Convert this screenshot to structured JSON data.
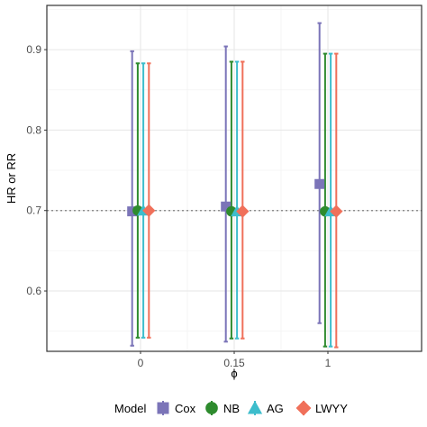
{
  "chart_data": {
    "type": "scatter",
    "title": "",
    "xlabel": "ϕ",
    "ylabel": "HR or RR",
    "categories": [
      "0",
      "0.15",
      "1"
    ],
    "ylim": [
      0.525,
      0.955
    ],
    "yticks": [
      0.6,
      0.7,
      0.8,
      0.9
    ],
    "ytick_labels": [
      "0.6",
      "0.7",
      "0.8",
      "0.9"
    ],
    "reference_line": 0.7,
    "grid": true,
    "legend_position": "bottom",
    "legend_title": "Model",
    "series": [
      {
        "name": "Cox",
        "color": "#7b74b8",
        "shape": "square",
        "values": [
          0.699,
          0.705,
          0.733
        ],
        "lower": [
          0.532,
          0.537,
          0.56
        ],
        "upper": [
          0.898,
          0.904,
          0.933
        ]
      },
      {
        "name": "NB",
        "color": "#2e8b2e",
        "shape": "circle",
        "values": [
          0.7,
          0.699,
          0.699
        ],
        "lower": [
          0.542,
          0.541,
          0.531
        ],
        "upper": [
          0.883,
          0.885,
          0.895
        ]
      },
      {
        "name": "AG",
        "color": "#3dbdcc",
        "shape": "triangle",
        "values": [
          0.7,
          0.699,
          0.699
        ],
        "lower": [
          0.542,
          0.541,
          0.531
        ],
        "upper": [
          0.883,
          0.885,
          0.895
        ]
      },
      {
        "name": "LWYY",
        "color": "#f0705a",
        "shape": "diamond",
        "values": [
          0.7,
          0.699,
          0.699
        ],
        "lower": [
          0.542,
          0.541,
          0.53
        ],
        "upper": [
          0.883,
          0.885,
          0.895
        ]
      }
    ]
  }
}
